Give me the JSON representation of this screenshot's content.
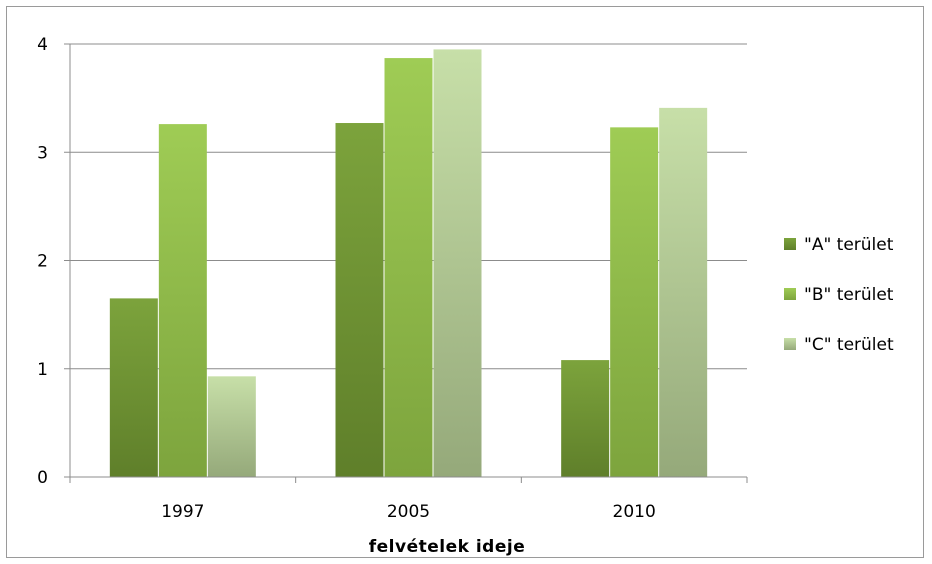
{
  "chart_data": {
    "type": "bar",
    "categories": [
      "1997",
      "2005",
      "2010"
    ],
    "series": [
      {
        "name": "\"A\" terület",
        "values": [
          1.65,
          3.27,
          1.08
        ],
        "color_top": "#7ca33c",
        "color_bottom": "#5f7f2a"
      },
      {
        "name": "\"B\" terület",
        "values": [
          3.26,
          3.87,
          3.23
        ],
        "color_top": "#9fcc55",
        "color_bottom": "#7da43d"
      },
      {
        "name": "\"C\" terület",
        "values": [
          0.93,
          3.95,
          3.41
        ],
        "color_top": "#c7dfa8",
        "color_bottom": "#95a97a"
      }
    ],
    "title": "",
    "xlabel": "felvételek ideje",
    "ylabel": "",
    "ylim": [
      0,
      4
    ],
    "yticks": [
      0,
      1,
      2,
      3,
      4
    ],
    "grid": true,
    "legend_position": "right"
  }
}
